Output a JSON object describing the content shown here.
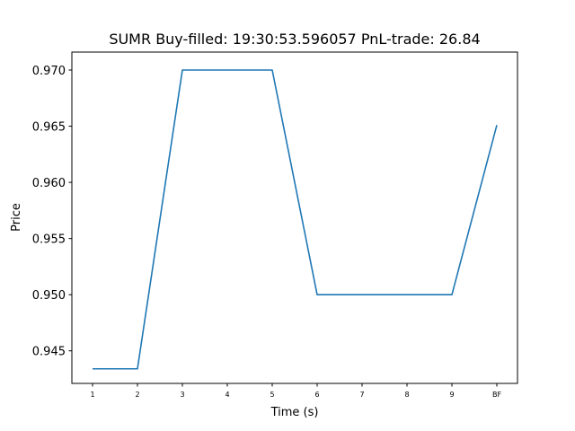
{
  "chart_data": {
    "type": "line",
    "title": "SUMR  Buy-filled:  19:30:53.596057  PnL-trade:  26.84",
    "xlabel": "Time (s)",
    "ylabel": "Price",
    "categories": [
      "1",
      "2",
      "3",
      "4",
      "5",
      "6",
      "7",
      "8",
      "9",
      "BF"
    ],
    "series": [
      {
        "values": [
          0.9434,
          0.9434,
          0.97,
          0.97,
          0.97,
          0.95,
          0.95,
          0.95,
          0.95,
          0.9651
        ]
      }
    ],
    "ylim": [
      0.9421,
      0.9716
    ],
    "yticks": [
      0.945,
      0.95,
      0.955,
      0.96,
      0.965,
      0.97
    ],
    "ytick_labels": [
      "0.945",
      "0.950",
      "0.955",
      "0.960",
      "0.965",
      "0.970"
    ],
    "grid": false,
    "line_color": "#1f77b4"
  }
}
